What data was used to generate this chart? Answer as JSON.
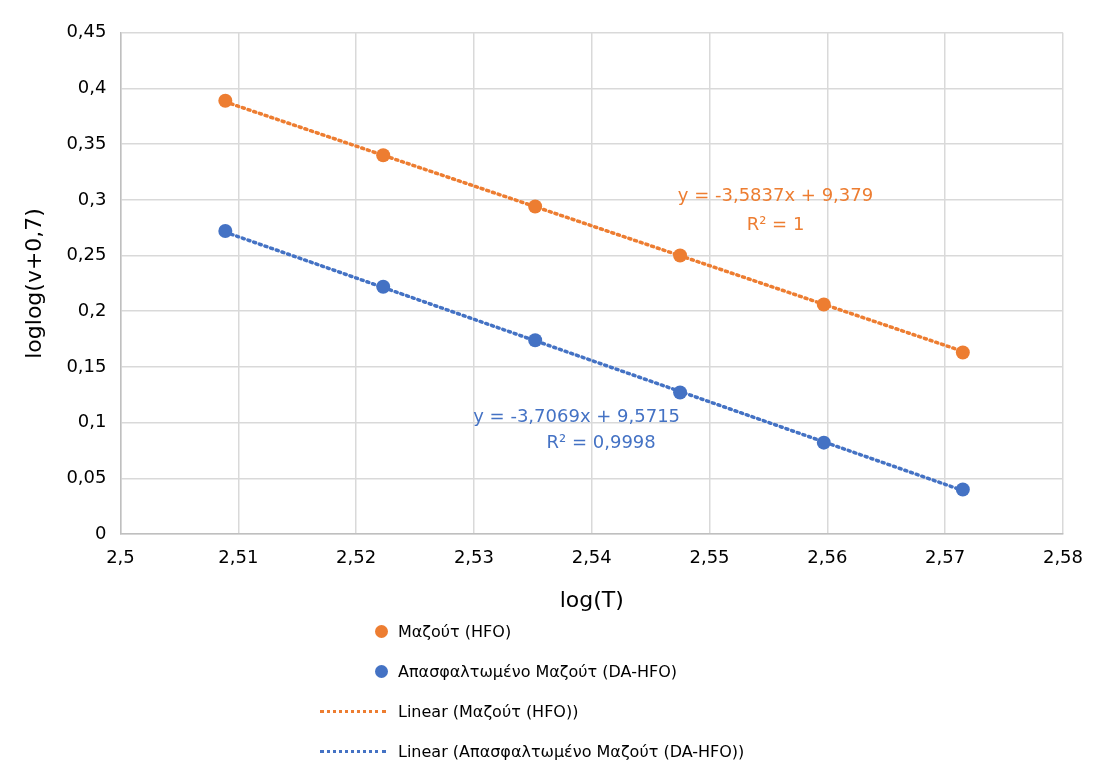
{
  "chart_data": {
    "type": "scatter",
    "xlabel": "log(T)",
    "ylabel": "loglog(v+0,7)",
    "xlim": [
      2.5,
      2.58
    ],
    "xticks": [
      {
        "value": 2.5,
        "label": "2,5"
      },
      {
        "value": 2.51,
        "label": "2,51"
      },
      {
        "value": 2.52,
        "label": "2,52"
      },
      {
        "value": 2.53,
        "label": "2,53"
      },
      {
        "value": 2.54,
        "label": "2,54"
      },
      {
        "value": 2.55,
        "label": "2,55"
      },
      {
        "value": 2.56,
        "label": "2,56"
      },
      {
        "value": 2.57,
        "label": "2,57"
      },
      {
        "value": 2.58,
        "label": "2,58"
      }
    ],
    "ylim": [
      0,
      0.45
    ],
    "yticks": [
      0,
      {
        "value": 0.05,
        "label": "0,05"
      },
      {
        "value": 0.1,
        "label": "0,1"
      },
      {
        "value": 0.15,
        "label": "0,15"
      },
      {
        "value": 0.2,
        "label": "0,2"
      },
      {
        "value": 0.25,
        "label": "0,25"
      },
      {
        "value": 0.3,
        "label": "0,3"
      },
      {
        "value": 0.35,
        "label": "0,35"
      },
      {
        "value": 0.4,
        "label": "0,4"
      },
      {
        "value": 0.45,
        "label": "0,45"
      }
    ],
    "grid": true,
    "legend": "bottom",
    "marker": "circle",
    "series": [
      {
        "name": "Μαζούτ (HFO)",
        "color": "#ed7d31",
        "x": [
          2.5089,
          2.5223,
          2.5352,
          2.5475,
          2.5597,
          2.5715
        ],
        "values": [
          0.389,
          0.34,
          0.294,
          0.25,
          0.206,
          0.163
        ]
      },
      {
        "name": "Απασφαλτωμένο Μαζούτ (DA-HFO)",
        "color": "#4472c4",
        "x": [
          2.5089,
          2.5223,
          2.5352,
          2.5475,
          2.5597,
          2.5715
        ],
        "values": [
          0.272,
          0.222,
          0.174,
          0.127,
          0.082,
          0.04
        ]
      },
      {
        "name": "Linear (Μαζούτ (HFO))",
        "type": "line",
        "line_style": "dotted",
        "marker": "none",
        "color": "#ed7d31",
        "x": [
          2.5089,
          2.5715
        ],
        "values": [
          0.388,
          0.164
        ]
      },
      {
        "name": "Linear (Απασφαλτωμένο Μαζούτ (DA-HFO))",
        "type": "line",
        "line_style": "dotted",
        "marker": "none",
        "color": "#4472c4",
        "x": [
          2.5089,
          2.5715
        ],
        "values": [
          0.271,
          0.039
        ]
      }
    ],
    "annotations": [
      "y = -3,5837x + 9,379",
      "R² = 1",
      "y = -3,7069x + 9,5715",
      "R² = 0,9998"
    ]
  }
}
